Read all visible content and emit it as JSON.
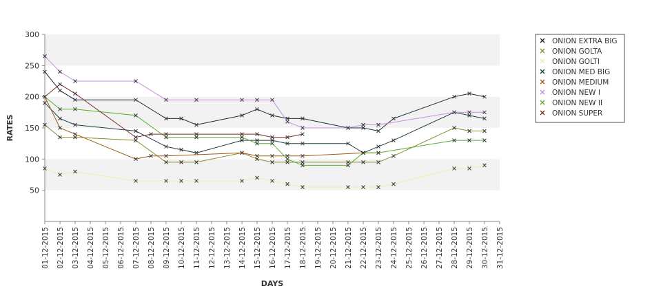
{
  "chart_data": {
    "type": "line",
    "title": "",
    "xlabel": "DAYS",
    "ylabel": "RATES",
    "ylim": [
      0,
      300
    ],
    "yticks": [
      50,
      100,
      150,
      200,
      250,
      300
    ],
    "grid": "horizontal bands",
    "legend_position": "right",
    "categories": [
      "01-12-2015",
      "02-12-2015",
      "03-12-2015",
      "04-12-2015",
      "05-12-2015",
      "06-12-2015",
      "07-12-2015",
      "08-12-2015",
      "09-12-2015",
      "10-12-2015",
      "11-12-2015",
      "12-12-2015",
      "13-12-2015",
      "14-12-2015",
      "15-12-2015",
      "16-12-2015",
      "17-12-2015",
      "18-12-2015",
      "19-12-2015",
      "20-12-2015",
      "21-12-2015",
      "22-12-2015",
      "23-12-2015",
      "24-12-2015",
      "25-12-2015",
      "26-12-2015",
      "27-12-2015",
      "28-12-2015",
      "29-12-2015",
      "30-12-2015",
      "31-12-2015"
    ],
    "series": [
      {
        "name": "ONION EXTRA BIG",
        "color": "#1a2a3a",
        "values": [
          240,
          210,
          195,
          null,
          null,
          null,
          195,
          null,
          165,
          165,
          155,
          null,
          null,
          170,
          180,
          170,
          165,
          165,
          null,
          null,
          150,
          150,
          145,
          165,
          null,
          null,
          null,
          200,
          205,
          200,
          null
        ]
      },
      {
        "name": "ONION GOLTA",
        "color": "#8a8a30",
        "values": [
          155,
          135,
          135,
          null,
          null,
          null,
          130,
          null,
          95,
          95,
          95,
          null,
          null,
          110,
          100,
          95,
          95,
          95,
          null,
          null,
          95,
          95,
          95,
          105,
          null,
          null,
          null,
          150,
          145,
          145,
          null
        ]
      },
      {
        "name": "ONION GOLTI",
        "color": "#eeeeaa",
        "values": [
          85,
          75,
          80,
          null,
          null,
          null,
          65,
          null,
          65,
          65,
          65,
          null,
          null,
          65,
          70,
          65,
          60,
          55,
          null,
          null,
          55,
          55,
          55,
          60,
          null,
          null,
          null,
          85,
          85,
          90,
          null
        ]
      },
      {
        "name": "ONION MED BIG",
        "color": "#1f4040",
        "values": [
          190,
          165,
          155,
          null,
          null,
          null,
          145,
          null,
          120,
          115,
          110,
          null,
          null,
          130,
          130,
          130,
          125,
          125,
          null,
          null,
          125,
          110,
          120,
          130,
          null,
          null,
          null,
          175,
          170,
          165,
          null
        ]
      },
      {
        "name": "ONION MEDIUM",
        "color": "#a05a10",
        "values": [
          200,
          150,
          140,
          null,
          null,
          null,
          100,
          105,
          105,
          null,
          null,
          null,
          null,
          110,
          105,
          105,
          105,
          105,
          null,
          null,
          null,
          110,
          110,
          null,
          null,
          null,
          null,
          null,
          null,
          null,
          null
        ]
      },
      {
        "name": "ONION NEW I",
        "color": "#c58de0",
        "values": [
          265,
          240,
          225,
          null,
          null,
          null,
          225,
          null,
          195,
          null,
          195,
          null,
          null,
          195,
          195,
          195,
          160,
          150,
          null,
          null,
          150,
          155,
          155,
          null,
          null,
          null,
          null,
          175,
          175,
          175,
          null
        ]
      },
      {
        "name": "ONION NEW II",
        "color": "#5aaa30",
        "values": [
          200,
          180,
          180,
          null,
          null,
          null,
          170,
          null,
          135,
          null,
          135,
          null,
          null,
          135,
          125,
          125,
          100,
          90,
          null,
          null,
          90,
          110,
          110,
          null,
          null,
          null,
          null,
          130,
          130,
          130,
          null
        ]
      },
      {
        "name": "ONION SUPER",
        "color": "#7a2a20",
        "values": [
          200,
          220,
          205,
          null,
          null,
          null,
          135,
          140,
          140,
          null,
          140,
          null,
          null,
          140,
          140,
          135,
          135,
          140,
          null,
          null,
          null,
          null,
          null,
          null,
          null,
          null,
          null,
          null,
          null,
          null,
          null
        ]
      }
    ]
  }
}
